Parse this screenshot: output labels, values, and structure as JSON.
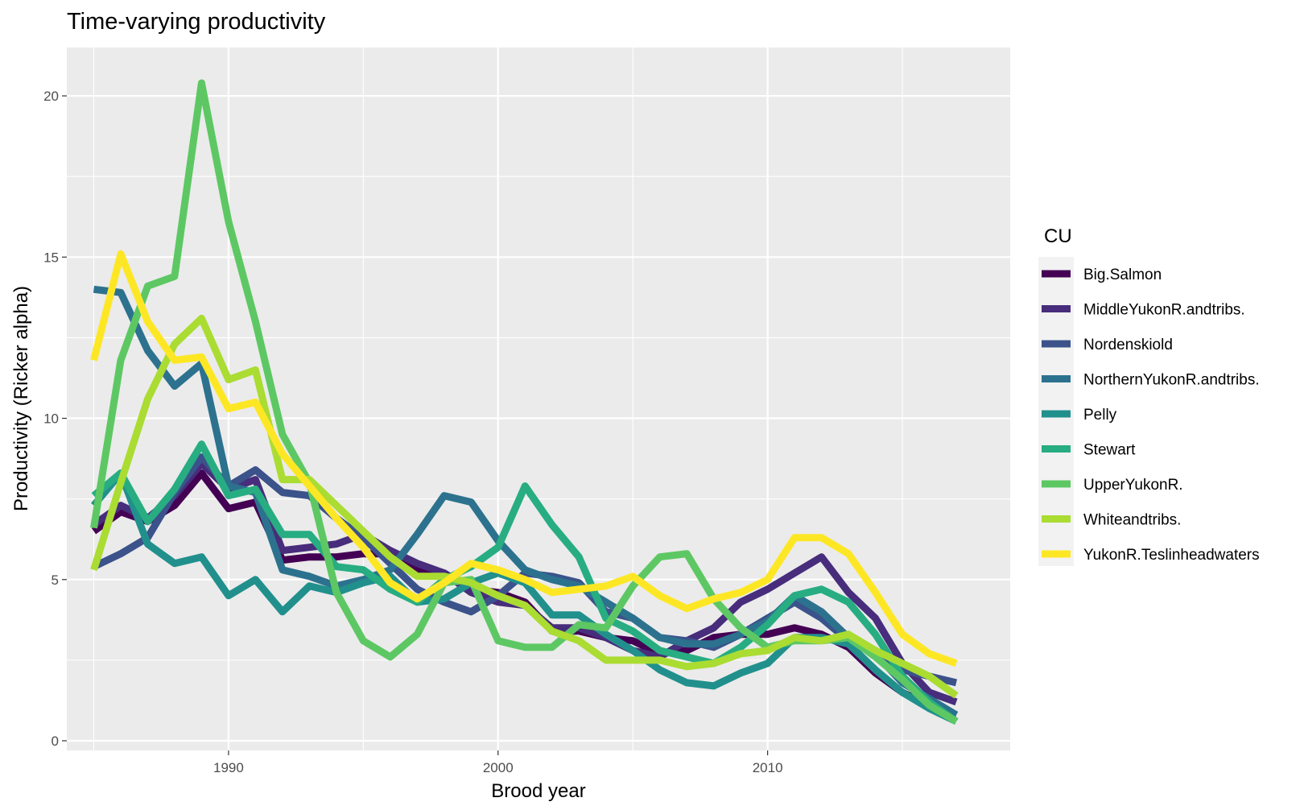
{
  "chart_data": {
    "type": "line",
    "title": "Time-varying productivity",
    "xlabel": "Brood year",
    "ylabel": "Productivity (Ricker alpha)",
    "xlim": [
      1984,
      2019
    ],
    "ylim": [
      -0.3,
      21.5
    ],
    "x_ticks": [
      1990,
      2000,
      2010
    ],
    "y_ticks": [
      0,
      5,
      10,
      15,
      20
    ],
    "grid": true,
    "legend": {
      "title": "CU",
      "placement": "right"
    },
    "x": [
      1985,
      1986,
      1987,
      1988,
      1989,
      1990,
      1991,
      1992,
      1993,
      1994,
      1995,
      1996,
      1997,
      1998,
      1999,
      2000,
      2001,
      2002,
      2003,
      2004,
      2005,
      2006,
      2007,
      2008,
      2009,
      2010,
      2011,
      2012,
      2013,
      2014,
      2015,
      2016,
      2017
    ],
    "series": [
      {
        "name": "Big.Salmon",
        "color": "#440154",
        "values": [
          6.5,
          7.1,
          6.8,
          7.3,
          8.3,
          7.2,
          7.4,
          5.6,
          5.7,
          5.7,
          5.8,
          5.8,
          5.3,
          5.2,
          4.7,
          4.6,
          4.3,
          3.4,
          3.4,
          3.2,
          3.1,
          2.7,
          2.8,
          3.2,
          3.3,
          3.3,
          3.5,
          3.3,
          2.9,
          2.1,
          1.5,
          1.1,
          0.8
        ]
      },
      {
        "name": "MiddleYukonR.andtribs.",
        "color": "#472D7B",
        "values": [
          6.7,
          7.3,
          6.9,
          7.6,
          8.6,
          7.8,
          8.1,
          5.9,
          6.0,
          6.1,
          6.4,
          5.9,
          5.5,
          5.2,
          4.6,
          4.3,
          4.2,
          3.5,
          3.5,
          3.2,
          2.8,
          2.6,
          3.1,
          3.5,
          4.3,
          4.7,
          5.2,
          5.7,
          4.6,
          3.8,
          2.4,
          1.5,
          1.2
        ]
      },
      {
        "name": "Nordenskiold",
        "color": "#3B528B",
        "values": [
          5.4,
          5.8,
          6.3,
          7.7,
          8.8,
          7.9,
          8.4,
          7.7,
          7.6,
          6.9,
          6.3,
          5.5,
          4.7,
          4.3,
          4.0,
          4.5,
          5.2,
          5.1,
          4.9,
          4.0,
          3.8,
          3.2,
          3.1,
          2.9,
          3.3,
          3.8,
          4.3,
          3.8,
          3.1,
          2.8,
          2.2,
          2.0,
          1.8
        ]
      },
      {
        "name": "NorthernYukonR.andtribs.",
        "color": "#2C728E",
        "values": [
          14.0,
          13.9,
          12.1,
          11.0,
          11.7,
          7.9,
          7.7,
          5.3,
          5.1,
          4.8,
          5.0,
          5.3,
          6.4,
          7.6,
          7.4,
          6.2,
          5.3,
          5.0,
          4.8,
          4.3,
          3.8,
          3.2,
          3.0,
          3.0,
          3.3,
          3.7,
          4.5,
          4.0,
          3.2,
          2.7,
          1.8,
          1.3,
          0.8
        ]
      },
      {
        "name": "Pelly",
        "color": "#21908C",
        "values": [
          7.3,
          8.3,
          6.1,
          5.5,
          5.7,
          4.5,
          5.0,
          4.0,
          4.8,
          4.6,
          4.9,
          5.1,
          4.3,
          4.4,
          4.9,
          5.2,
          4.9,
          3.9,
          3.9,
          3.3,
          2.8,
          2.2,
          1.8,
          1.7,
          2.1,
          2.4,
          3.2,
          3.2,
          3.0,
          2.2,
          1.5,
          1.0,
          0.6
        ]
      },
      {
        "name": "Stewart",
        "color": "#27AD81",
        "values": [
          7.6,
          8.3,
          6.8,
          7.8,
          9.2,
          7.6,
          7.8,
          6.4,
          6.4,
          5.4,
          5.3,
          4.7,
          4.3,
          5.0,
          5.4,
          6.0,
          7.9,
          6.7,
          5.7,
          3.8,
          3.4,
          2.8,
          2.6,
          2.4,
          2.9,
          3.6,
          4.5,
          4.7,
          4.3,
          3.3,
          2.0,
          1.2,
          0.6
        ]
      },
      {
        "name": "UpperYukonR.",
        "color": "#5DC863",
        "values": [
          6.6,
          11.8,
          14.1,
          14.4,
          20.4,
          16.1,
          13.0,
          9.5,
          8.0,
          4.6,
          3.1,
          2.6,
          3.3,
          4.9,
          5.0,
          3.1,
          2.9,
          2.9,
          3.6,
          3.5,
          4.8,
          5.7,
          5.8,
          4.4,
          3.5,
          2.9,
          3.1,
          3.1,
          3.2,
          2.6,
          1.9,
          1.1,
          0.6
        ]
      },
      {
        "name": "Whiteandtribs.",
        "color": "#AADC32",
        "values": [
          5.3,
          8.0,
          10.6,
          12.3,
          13.1,
          11.2,
          11.5,
          8.1,
          8.1,
          7.3,
          6.5,
          5.7,
          5.1,
          5.1,
          4.9,
          4.5,
          4.2,
          3.4,
          3.1,
          2.5,
          2.5,
          2.5,
          2.3,
          2.4,
          2.7,
          2.8,
          3.2,
          3.1,
          3.3,
          2.8,
          2.4,
          2.0,
          1.4
        ]
      },
      {
        "name": "YukonR.Teslinheadwaters",
        "color": "#FDE725",
        "values": [
          11.8,
          15.1,
          13.0,
          11.8,
          11.9,
          10.3,
          10.5,
          8.9,
          7.9,
          6.9,
          6.0,
          4.9,
          4.4,
          4.9,
          5.5,
          5.3,
          5.0,
          4.6,
          4.7,
          4.8,
          5.1,
          4.5,
          4.1,
          4.4,
          4.6,
          5.0,
          6.3,
          6.3,
          5.8,
          4.6,
          3.3,
          2.7,
          2.4
        ]
      }
    ]
  }
}
